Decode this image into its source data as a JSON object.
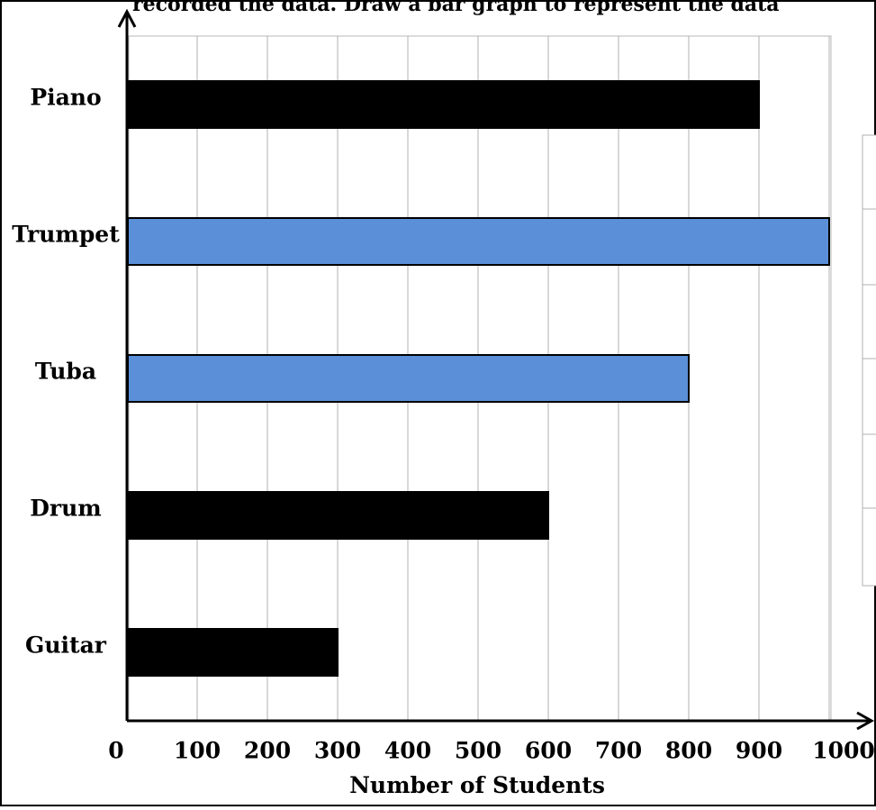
{
  "chart_data": {
    "type": "bar",
    "orientation": "horizontal",
    "title": "recorded the data. Draw a bar graph to represent the data",
    "xlabel": "Number of Students",
    "ylabel": "",
    "xlim": [
      0,
      1000
    ],
    "x_ticks": [
      0,
      100,
      200,
      300,
      400,
      500,
      600,
      700,
      800,
      900,
      1000
    ],
    "grid": "vertical",
    "categories": [
      "Piano",
      "Trumpet",
      "Tuba",
      "Drum",
      "Guitar"
    ],
    "values": [
      900,
      1000,
      800,
      600,
      300
    ],
    "bar_colors": [
      "#000000",
      "#5b8fd8",
      "#5b8fd8",
      "#000000",
      "#000000"
    ]
  },
  "colors": {
    "black_bar": "#000000",
    "blue_bar": "#5b8fd8",
    "grid": "#b0b0b0"
  }
}
